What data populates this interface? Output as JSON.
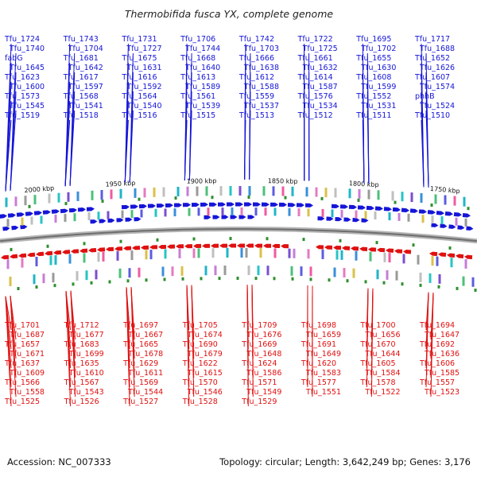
{
  "title": "Thermobifida fusca YX, complete genome",
  "footer": {
    "accession": "Accession: NC_007333",
    "stats": "Topology: circular; Length: 3,642,249 bp; Genes: 3,176"
  },
  "colors": {
    "forward": "#1515d8",
    "reverse": "#e01010",
    "backbone": "#909090",
    "rna_marker": "#2f8f2f"
  },
  "kbp_ticks": [
    {
      "label": "2000 kbp",
      "kbp": 2000
    },
    {
      "label": "1950 kbp",
      "kbp": 1950
    },
    {
      "label": "1900 kbp",
      "kbp": 1900
    },
    {
      "label": "1850 kbp",
      "kbp": 1850
    },
    {
      "label": "1800 kbp",
      "kbp": 1800
    },
    {
      "label": "1750 kbp",
      "kbp": 1750
    }
  ],
  "top_genes": [
    "Tfu_1724",
    "Tfu_1743",
    "Tfu_1731",
    "Tfu_1706",
    "Tfu_1742",
    "Tfu_1722",
    "Tfu_1695",
    "Tfu_1717",
    "Tfu_1740",
    "Tfu_1704",
    "Tfu_1727",
    "Tfu_1744",
    "Tfu_1703",
    "Tfu_1725",
    "Tfu_1702",
    "Tfu_1688",
    "fabG",
    "Tfu_1681",
    "Tfu_1675",
    "Tfu_1668",
    "Tfu_1666",
    "Tfu_1661",
    "Tfu_1655",
    "Tfu_1652",
    "Tfu_1645",
    "Tfu_1642",
    "Tfu_1631",
    "Tfu_1640",
    "Tfu_1638",
    "Tfu_1632",
    "Tfu_1630",
    "Tfu_1626",
    "Tfu_1623",
    "Tfu_1617",
    "Tfu_1616",
    "Tfu_1613",
    "Tfu_1612",
    "Tfu_1614",
    "Tfu_1608",
    "Tfu_1607",
    "Tfu_1600",
    "Tfu_1597",
    "Tfu_1592",
    "Tfu_1589",
    "Tfu_1588",
    "Tfu_1587",
    "Tfu_1599",
    "Tfu_1574",
    "Tfu_1573",
    "Tfu_1568",
    "Tfu_1564",
    "Tfu_1561",
    "Tfu_1559",
    "Tfu_1576",
    "Tfu_1552",
    "phhB",
    "Tfu_1545",
    "Tfu_1541",
    "Tfu_1540",
    "Tfu_1539",
    "Tfu_1537",
    "Tfu_1534",
    "Tfu_1531",
    "Tfu_1524",
    "Tfu_1519",
    "Tfu_1518",
    "Tfu_1516",
    "Tfu_1515",
    "Tfu_1513",
    "Tfu_1512",
    "Tfu_1511",
    "Tfu_1510"
  ],
  "bottom_genes": [
    "Tfu_1701",
    "Tfu_1712",
    "Tfu_1697",
    "Tfu_1705",
    "Tfu_1709",
    "Tfu_1698",
    "Tfu_1700",
    "Tfu_1694",
    "Tfu_1687",
    "Tfu_1677",
    "Tfu_1667",
    "Tfu_1674",
    "Tfu_1676",
    "Tfu_1659",
    "Tfu_1656",
    "Tfu_1647",
    "Tfu_1657",
    "Tfu_1683",
    "Tfu_1665",
    "Tfu_1690",
    "Tfu_1669",
    "Tfu_1691",
    "Tfu_1670",
    "Tfu_1692",
    "Tfu_1671",
    "Tfu_1699",
    "Tfu_1678",
    "Tfu_1679",
    "Tfu_1648",
    "Tfu_1649",
    "Tfu_1644",
    "Tfu_1636",
    "Tfu_1637",
    "Tfu_1635",
    "Tfu_1629",
    "Tfu_1622",
    "Tfu_1624",
    "Tfu_1620",
    "Tfu_1605",
    "Tfu_1606",
    "Tfu_1609",
    "Tfu_1610",
    "Tfu_1611",
    "Tfu_1615",
    "Tfu_1586",
    "Tfu_1583",
    "Tfu_1584",
    "Tfu_1585",
    "Tfu_1566",
    "Tfu_1567",
    "Tfu_1569",
    "Tfu_1570",
    "Tfu_1571",
    "Tfu_1577",
    "Tfu_1578",
    "Tfu_1557",
    "Tfu_1558",
    "Tfu_1543",
    "Tfu_1544",
    "Tfu_1546",
    "Tfu_1549",
    "Tfu_1551",
    "Tfu_1522",
    "Tfu_1523",
    "Tfu_1525",
    "Tfu_1526",
    "Tfu_1527",
    "Tfu_1528",
    "Tfu_1529"
  ]
}
